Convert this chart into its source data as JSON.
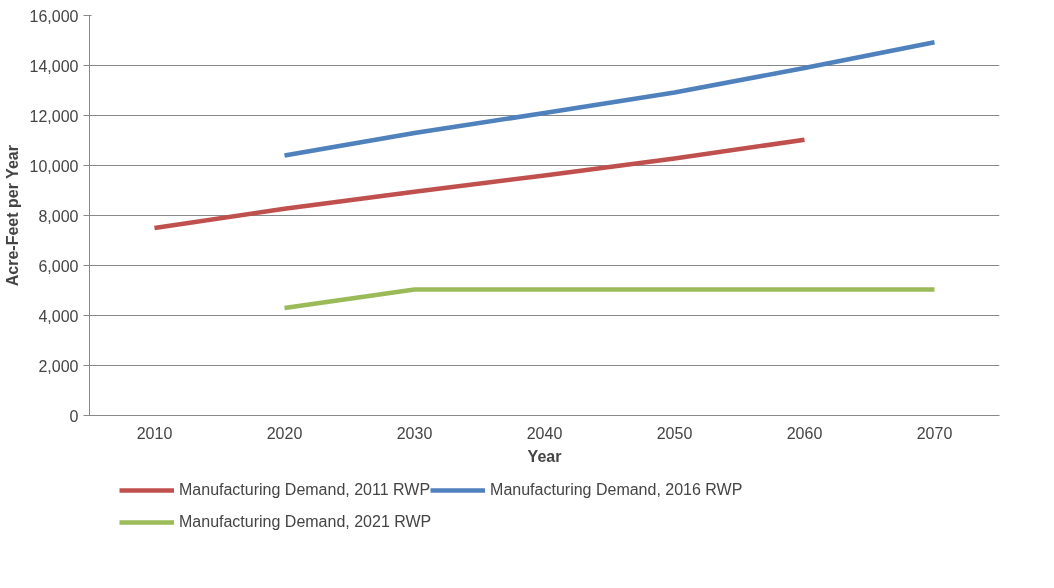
{
  "chart_data": {
    "type": "line",
    "xlabel": "Year",
    "ylabel": "Acre-Feet per Year",
    "categories": [
      "2010",
      "2020",
      "2030",
      "2040",
      "2050",
      "2060",
      "2070"
    ],
    "series": [
      {
        "name": "Manufacturing Demand, 2011 RWP",
        "color": "#c0504d",
        "values": [
          7500,
          8270,
          8950,
          9600,
          10280,
          11030,
          null
        ]
      },
      {
        "name": "Manufacturing Demand, 2016 RWP",
        "color": "#4f81bd",
        "values": [
          null,
          10400,
          11300,
          12100,
          12920,
          13900,
          14930
        ]
      },
      {
        "name": "Manufacturing Demand, 2021 RWP",
        "color": "#9bbb59",
        "values": [
          null,
          4300,
          5040,
          5040,
          5040,
          5040,
          5040
        ]
      }
    ],
    "ylim": [
      0,
      16000
    ],
    "yticks": [
      {
        "value": 0,
        "label": "0"
      },
      {
        "value": 2000,
        "label": "2,000"
      },
      {
        "value": 4000,
        "label": "4,000"
      },
      {
        "value": 6000,
        "label": "6,000"
      },
      {
        "value": 8000,
        "label": "8,000"
      },
      {
        "value": 10000,
        "label": "10,000"
      },
      {
        "value": 12000,
        "label": "12,000"
      },
      {
        "value": 14000,
        "label": "14,000"
      },
      {
        "value": 16000,
        "label": "16,000"
      }
    ],
    "grid": "y",
    "legend": "bottom",
    "marker": "none",
    "line_style": "solid"
  }
}
